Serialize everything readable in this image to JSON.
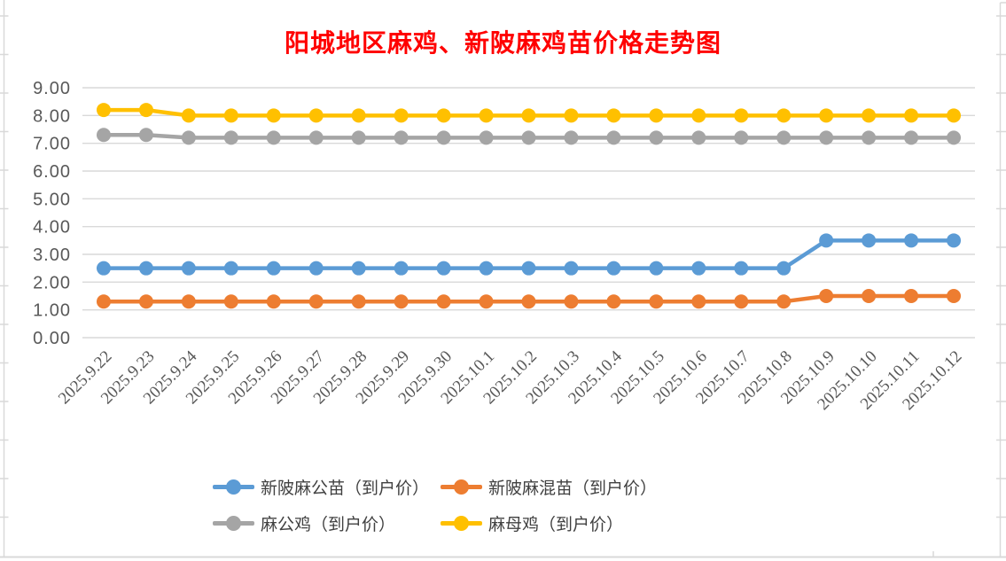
{
  "title": {
    "text": "阳城地区麻鸡、新陂麻鸡苗价格走势图",
    "color": "#FF0000"
  },
  "axes": {
    "y_tick_labels": [
      "0.00",
      "1.00",
      "2.00",
      "3.00",
      "4.00",
      "5.00",
      "6.00",
      "7.00",
      "8.00",
      "9.00"
    ],
    "label_color": "#595959",
    "gridline_color": "#D9D9D9",
    "sheet_edge_color": "#D9D9D9"
  },
  "chart_data": {
    "type": "line",
    "title": "阳城地区麻鸡、新陂麻鸡苗价格走势图",
    "categories": [
      "2025.9.22",
      "2025.9.23",
      "2025.9.24",
      "2025.9.25",
      "2025.9.26",
      "2025.9.27",
      "2025.9.28",
      "2025.9.29",
      "2025.9.30",
      "2025.10.1",
      "2025.10.2",
      "2025.10.3",
      "2025.10.4",
      "2025.10.5",
      "2025.10.6",
      "2025.10.7",
      "2025.10.8",
      "2025.10.9",
      "2025.10.10",
      "2025.10.11",
      "2025.10.12"
    ],
    "series": [
      {
        "name": "新陂麻公苗（到户价）",
        "color": "#5B9BD5",
        "values": [
          2.5,
          2.5,
          2.5,
          2.5,
          2.5,
          2.5,
          2.5,
          2.5,
          2.5,
          2.5,
          2.5,
          2.5,
          2.5,
          2.5,
          2.5,
          2.5,
          2.5,
          3.5,
          3.5,
          3.5,
          3.5
        ]
      },
      {
        "name": "新陂麻混苗（到户价）",
        "color": "#ED7D31",
        "values": [
          1.3,
          1.3,
          1.3,
          1.3,
          1.3,
          1.3,
          1.3,
          1.3,
          1.3,
          1.3,
          1.3,
          1.3,
          1.3,
          1.3,
          1.3,
          1.3,
          1.3,
          1.5,
          1.5,
          1.5,
          1.5
        ]
      },
      {
        "name": "麻公鸡（到户价）",
        "color": "#A5A5A5",
        "values": [
          7.3,
          7.3,
          7.2,
          7.2,
          7.2,
          7.2,
          7.2,
          7.2,
          7.2,
          7.2,
          7.2,
          7.2,
          7.2,
          7.2,
          7.2,
          7.2,
          7.2,
          7.2,
          7.2,
          7.2,
          7.2
        ]
      },
      {
        "name": "麻母鸡（到户价）",
        "color": "#FFC000",
        "values": [
          8.2,
          8.2,
          8.0,
          8.0,
          8.0,
          8.0,
          8.0,
          8.0,
          8.0,
          8.0,
          8.0,
          8.0,
          8.0,
          8.0,
          8.0,
          8.0,
          8.0,
          8.0,
          8.0,
          8.0,
          8.0
        ]
      }
    ],
    "ylim": [
      0,
      9
    ],
    "ytick_step": 1,
    "grid": true,
    "legend_position": "bottom"
  }
}
